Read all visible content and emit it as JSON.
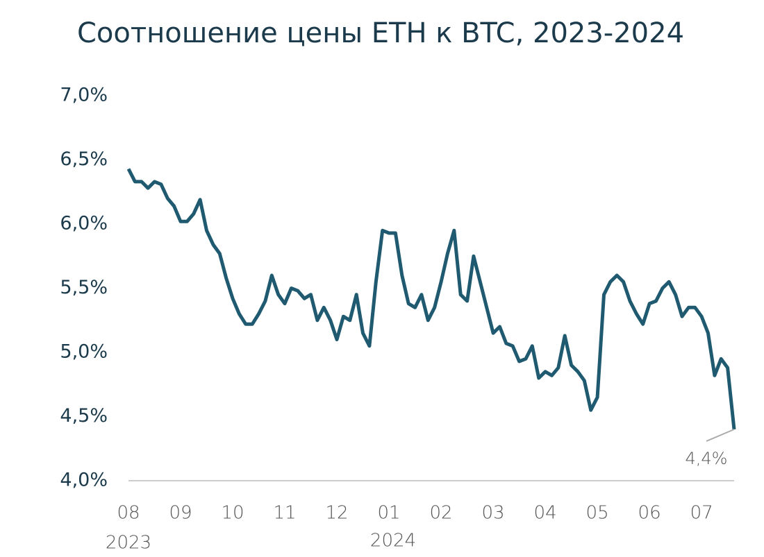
{
  "chart_data": {
    "type": "line",
    "title": "Соотношение цены ETH к BTC, 2023-2024",
    "categories": [
      "08",
      null,
      null,
      null,
      null,
      null,
      null,
      null,
      "09",
      null,
      null,
      null,
      null,
      null,
      null,
      null,
      "10",
      null,
      null,
      null,
      null,
      null,
      null,
      null,
      "11",
      null,
      null,
      null,
      null,
      null,
      null,
      null,
      "12",
      null,
      null,
      null,
      null,
      null,
      null,
      null,
      "01",
      null,
      null,
      null,
      null,
      null,
      null,
      null,
      "02",
      null,
      null,
      null,
      null,
      null,
      null,
      null,
      "03",
      null,
      null,
      null,
      null,
      null,
      null,
      null,
      "04",
      null,
      null,
      null,
      null,
      null,
      null,
      null,
      "05",
      null,
      null,
      null,
      null,
      null,
      null,
      null,
      "06",
      null,
      null,
      null,
      null,
      null,
      null,
      null,
      "07",
      null,
      null,
      null,
      null,
      null
    ],
    "year_labels": [
      "2023",
      "2024"
    ],
    "values": [
      6.43,
      6.33,
      6.33,
      6.28,
      6.33,
      6.31,
      6.2,
      6.14,
      6.02,
      6.02,
      6.08,
      6.19,
      5.95,
      5.84,
      5.77,
      5.58,
      5.42,
      5.3,
      5.22,
      5.22,
      5.3,
      5.4,
      5.6,
      5.45,
      5.38,
      5.5,
      5.48,
      5.42,
      5.45,
      5.25,
      5.35,
      5.25,
      5.1,
      5.28,
      5.25,
      5.45,
      5.15,
      5.05,
      5.55,
      5.95,
      5.93,
      5.93,
      5.6,
      5.38,
      5.35,
      5.45,
      5.25,
      5.35,
      5.55,
      5.77,
      5.95,
      5.45,
      5.4,
      5.75,
      5.55,
      5.35,
      5.15,
      5.2,
      5.07,
      5.05,
      4.93,
      4.95,
      5.05,
      4.8,
      4.85,
      4.82,
      4.88,
      5.13,
      4.9,
      4.85,
      4.78,
      4.55,
      4.65,
      5.45,
      5.55,
      5.6,
      5.55,
      5.4,
      5.3,
      5.22,
      5.38,
      5.4,
      5.5,
      5.55,
      5.45,
      5.28,
      5.35,
      5.35,
      5.28,
      5.15,
      4.82,
      4.95,
      4.88,
      4.4
    ],
    "value_labels": [
      null,
      null,
      null,
      null,
      null,
      null,
      null,
      null,
      null,
      null,
      null,
      null,
      null,
      null,
      null,
      null,
      null,
      null,
      null,
      null,
      null,
      null,
      null,
      null,
      null,
      null,
      null,
      null,
      null,
      null,
      null,
      null,
      null,
      null,
      null,
      null,
      null,
      null,
      null,
      null,
      null,
      null,
      null,
      null,
      null,
      null,
      null,
      null,
      null,
      null,
      null,
      null,
      null,
      null,
      null,
      null,
      null,
      null,
      null,
      null,
      null,
      null,
      null,
      null,
      null,
      null,
      null,
      null,
      null,
      null,
      null,
      null,
      null,
      null,
      null,
      null,
      null,
      null,
      null,
      null,
      null,
      null,
      null,
      null,
      null,
      null,
      null,
      null,
      null,
      null,
      null,
      null,
      null,
      "4,4%"
    ],
    "color": "#1f5a70",
    "ylim": [
      4,
      7
    ],
    "yticks": [
      {
        "value": 4,
        "label": "4,0%"
      },
      {
        "value": 4.5,
        "label": "4,5%"
      },
      {
        "value": 5,
        "label": "5,0%"
      },
      {
        "value": 5.5,
        "label": "5,5%"
      },
      {
        "value": 6,
        "label": "6,0%"
      },
      {
        "value": 6.5,
        "label": "6,5%"
      },
      {
        "value": 7,
        "label": "7,0%"
      }
    ]
  }
}
